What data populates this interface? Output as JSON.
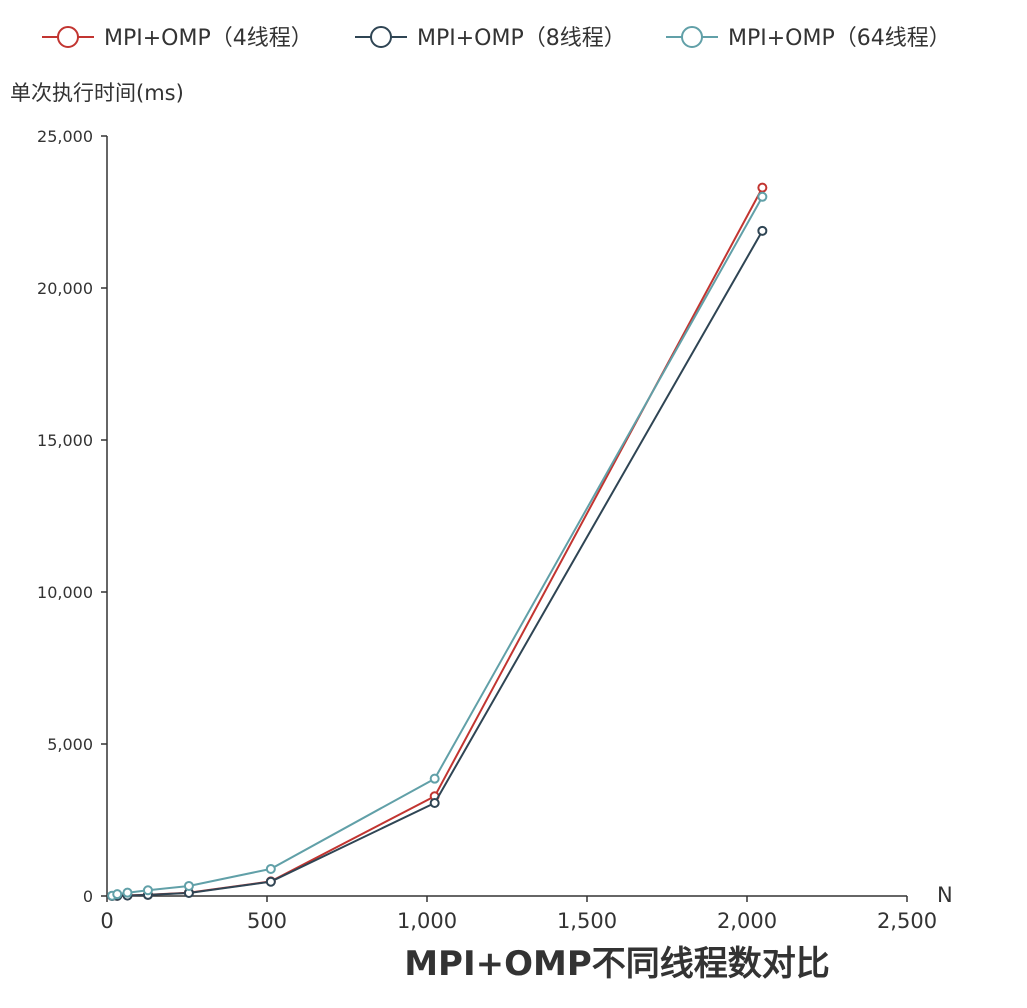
{
  "chart_data": {
    "type": "line",
    "title": "MPI+OMP不同线程数对比",
    "ylabel": "单次执行时间(ms)",
    "xlabel": "N",
    "xlim": [
      0,
      2500
    ],
    "ylim": [
      0,
      25000
    ],
    "x_ticks": [
      "0",
      "500",
      "1,000",
      "1,500",
      "2,000",
      "2,500"
    ],
    "y_ticks": [
      "0",
      "5,000",
      "10,000",
      "15,000",
      "20,000",
      "25,000"
    ],
    "grid": false,
    "legend_position": "top",
    "series": [
      {
        "name": "MPI+OMP（4线程）",
        "color": "#c23531",
        "x": [
          16,
          32,
          64,
          128,
          256,
          512,
          1024,
          2048
        ],
        "y": [
          2,
          8,
          20,
          40,
          110,
          480,
          3280,
          23300
        ]
      },
      {
        "name": "MPI+OMP（8线程）",
        "color": "#2f4554",
        "x": [
          16,
          32,
          64,
          128,
          256,
          512,
          1024,
          2048
        ],
        "y": [
          1,
          5,
          12,
          35,
          100,
          470,
          3060,
          21880
        ]
      },
      {
        "name": "MPI+OMP（64线程）",
        "color": "#61a0a8",
        "x": [
          16,
          32,
          64,
          128,
          256,
          512,
          1024,
          2048
        ],
        "y": [
          10,
          60,
          110,
          190,
          330,
          890,
          3860,
          23000
        ]
      }
    ]
  }
}
